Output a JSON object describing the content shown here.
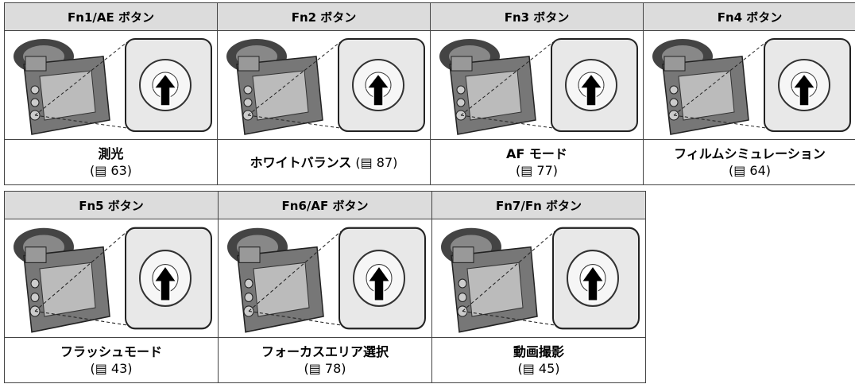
{
  "tables": [
    {
      "columns": [
        {
          "header": "Fn1/AE ボタン",
          "label": "測光",
          "ref": "(▤ 63)"
        },
        {
          "header": "Fn2 ボタン",
          "label": "ホワイトバランス",
          "ref": "(▤ 87)"
        },
        {
          "header": "Fn3 ボタン",
          "label": "AF モード",
          "ref": "(▤ 77)"
        },
        {
          "header": "Fn4 ボタン",
          "label": "フィルムシミュレーション",
          "ref": "(▤ 64)"
        }
      ]
    },
    {
      "columns": [
        {
          "header": "Fn5 ボタン",
          "label": "フラッシュモード",
          "ref": "(▤ 43)"
        },
        {
          "header": "Fn6/AF ボタン",
          "label": "フォーカスエリア選択",
          "ref": "(▤ 78)"
        },
        {
          "header": "Fn7/Fn ボタン",
          "label": "動画撮影",
          "ref": "(▤ 45)"
        }
      ]
    }
  ]
}
